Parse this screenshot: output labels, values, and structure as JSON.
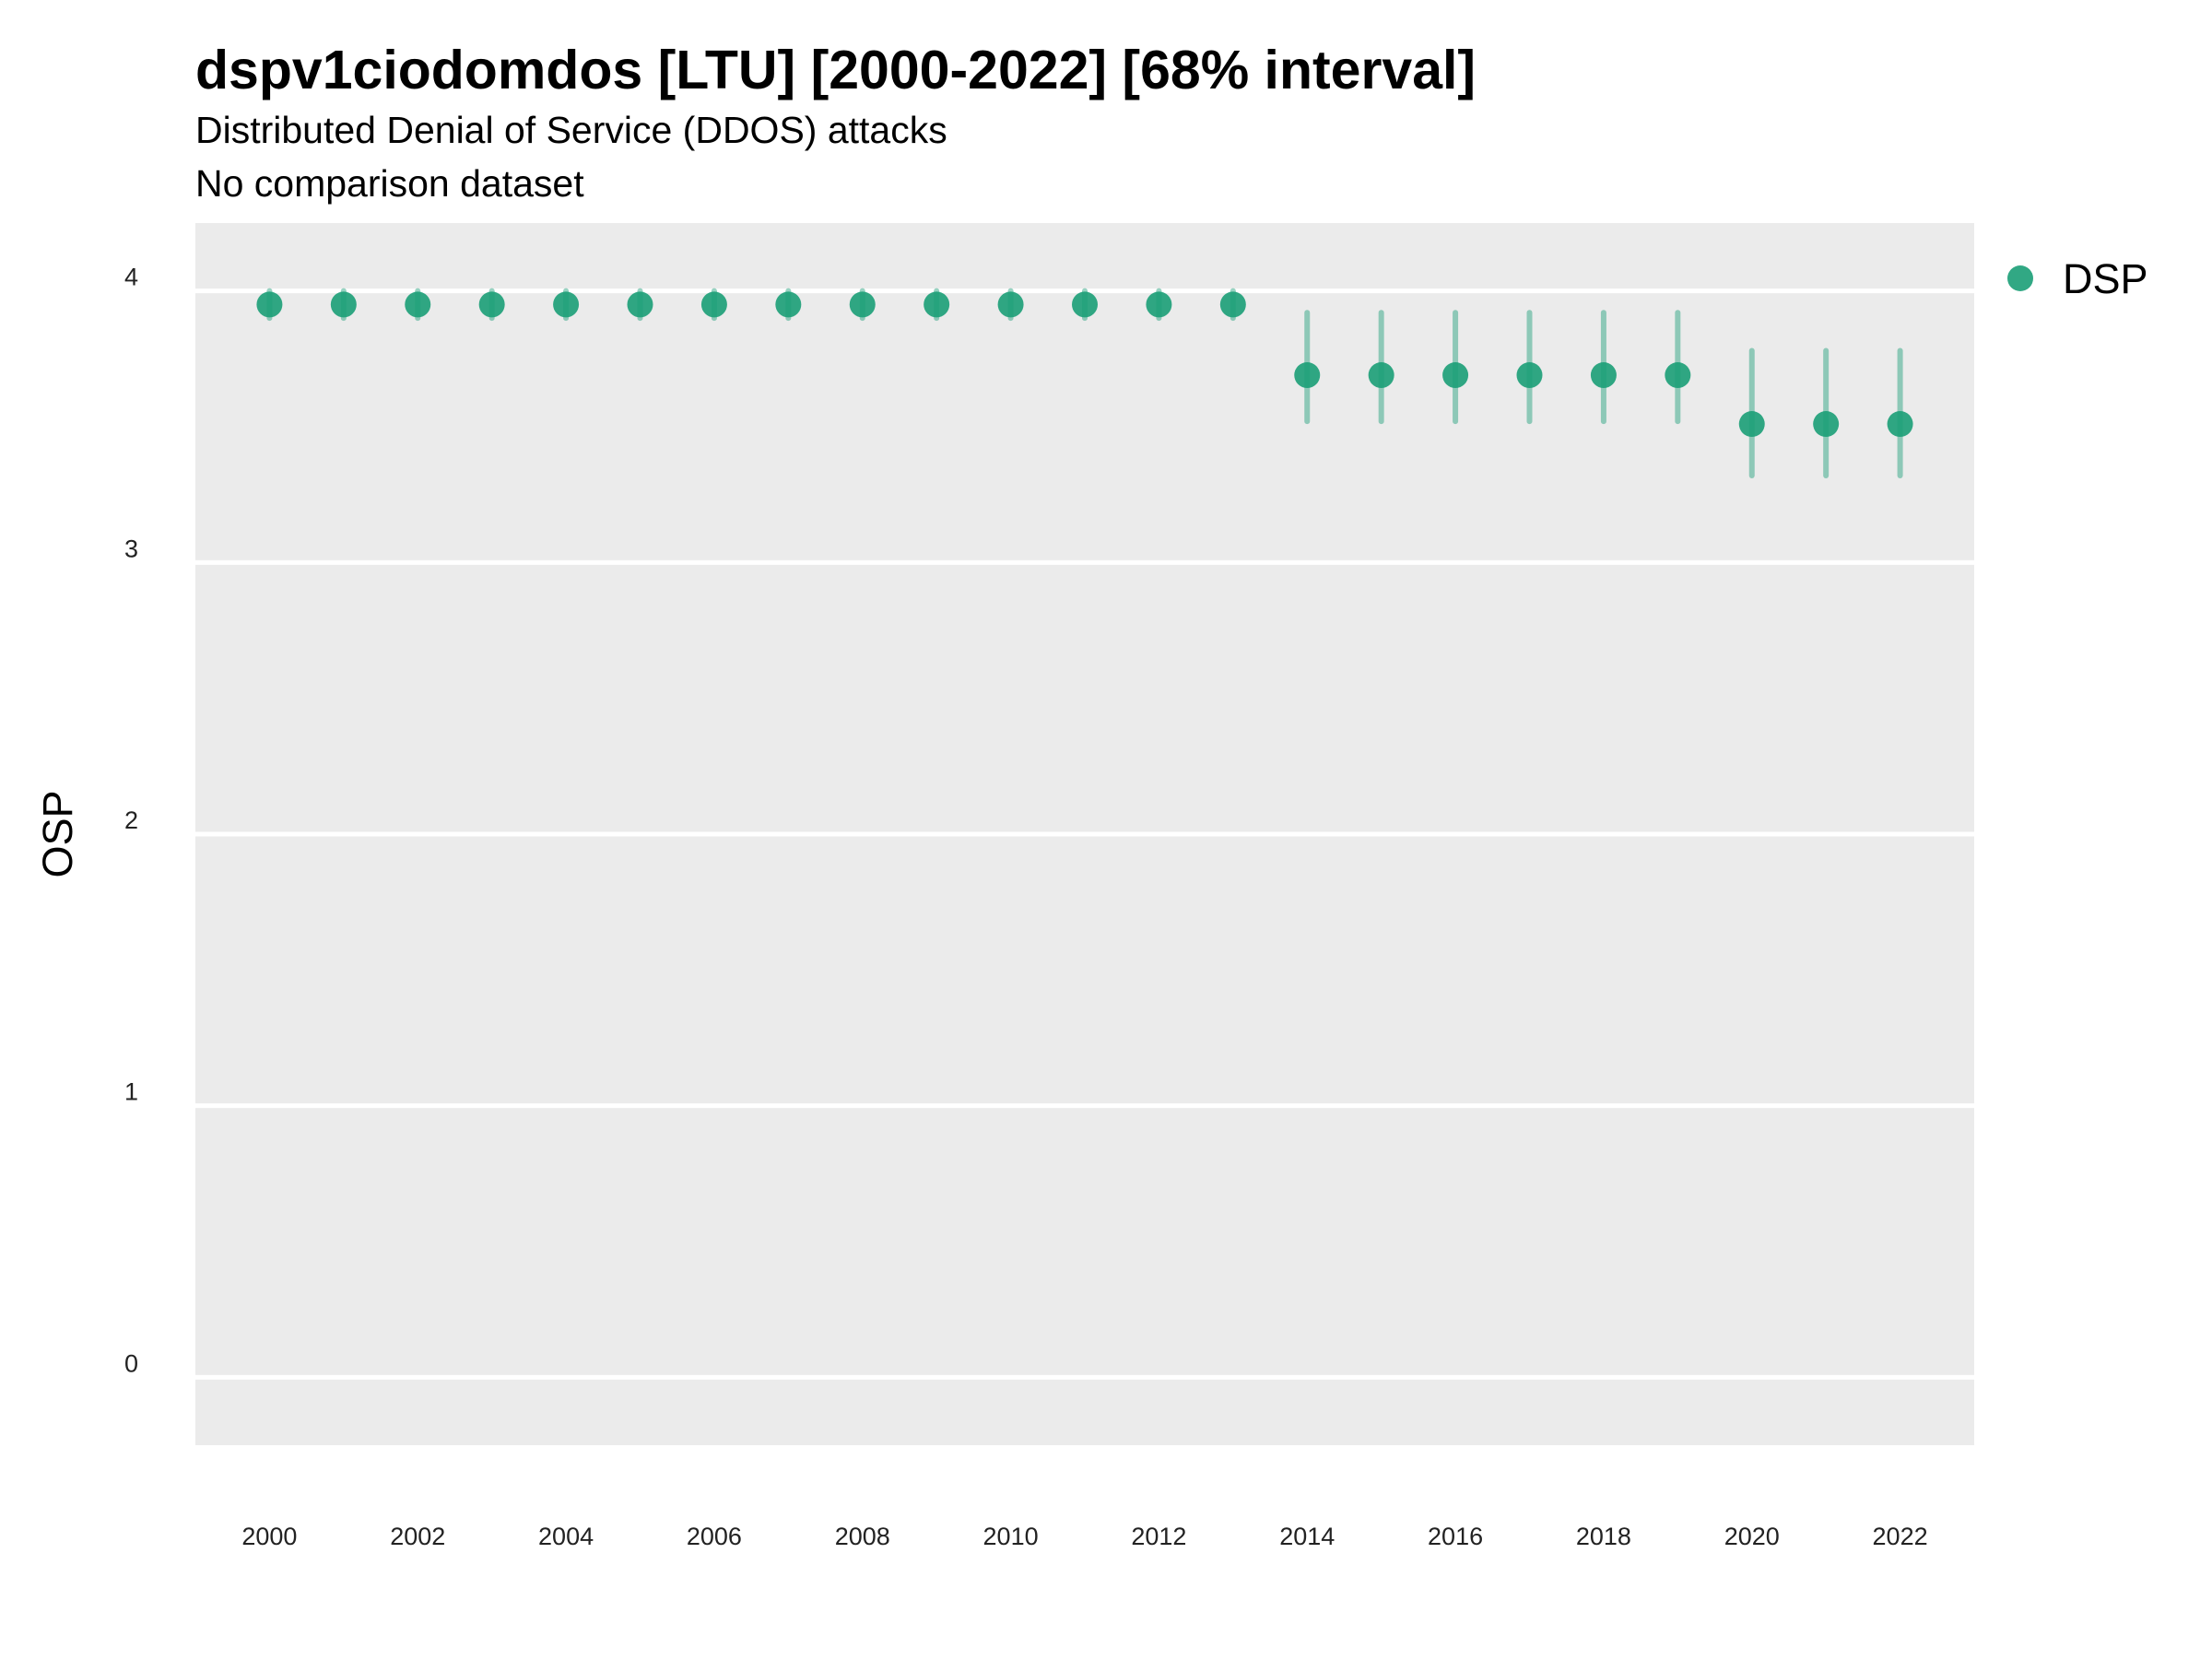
{
  "chart_data": {
    "type": "scatter",
    "title": "dspv1ciodomdos [LTU] [2000-2022] [68% interval]",
    "subtitle": "Distributed Denial of Service (DDOS) attacks",
    "caption": "No comparison dataset",
    "xlabel": "",
    "ylabel": "OSP",
    "xlim": [
      1999,
      2023
    ],
    "ylim": [
      -0.25,
      4.25
    ],
    "y_ticks": [
      0,
      1,
      2,
      3,
      4
    ],
    "x_ticks": [
      2000,
      2002,
      2004,
      2006,
      2008,
      2010,
      2012,
      2014,
      2016,
      2018,
      2020,
      2022
    ],
    "grid": "horizontal",
    "legend_position": "right-top",
    "series": [
      {
        "name": "DSP",
        "color": "#1B9E77",
        "x": [
          2000,
          2001,
          2002,
          2003,
          2004,
          2005,
          2006,
          2007,
          2008,
          2009,
          2010,
          2011,
          2012,
          2013,
          2014,
          2015,
          2016,
          2017,
          2018,
          2019,
          2020,
          2021,
          2022
        ],
        "y": [
          3.95,
          3.95,
          3.95,
          3.95,
          3.95,
          3.95,
          3.95,
          3.95,
          3.95,
          3.95,
          3.95,
          3.95,
          3.95,
          3.95,
          3.69,
          3.69,
          3.69,
          3.69,
          3.69,
          3.69,
          3.51,
          3.51,
          3.51
        ],
        "lower": [
          3.9,
          3.9,
          3.9,
          3.9,
          3.9,
          3.9,
          3.9,
          3.9,
          3.9,
          3.9,
          3.9,
          3.9,
          3.9,
          3.9,
          3.52,
          3.52,
          3.52,
          3.52,
          3.52,
          3.52,
          3.32,
          3.32,
          3.32
        ],
        "upper": [
          4.0,
          4.0,
          4.0,
          4.0,
          4.0,
          4.0,
          4.0,
          4.0,
          4.0,
          4.0,
          4.0,
          4.0,
          4.0,
          4.0,
          3.92,
          3.92,
          3.92,
          3.92,
          3.92,
          3.92,
          3.78,
          3.78,
          3.78
        ]
      }
    ]
  }
}
